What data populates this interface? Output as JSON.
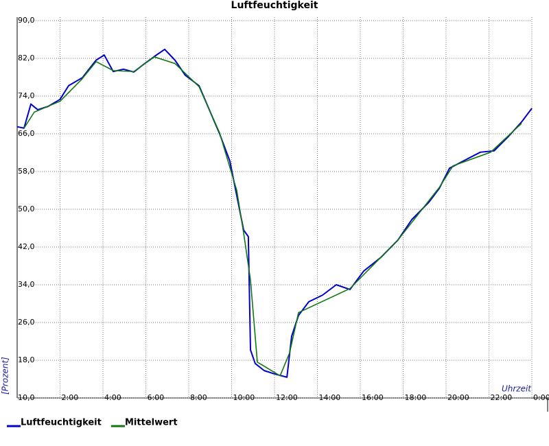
{
  "chart_data": {
    "type": "line",
    "title": "Luftfeuchtigkeit",
    "x_label": "Uhrzeit",
    "y_label": "[Prozent]",
    "xlim": [
      0,
      24
    ],
    "ylim": [
      10,
      90
    ],
    "xticks": [
      {
        "value": 2,
        "label": "2:00"
      },
      {
        "value": 4,
        "label": "4:00"
      },
      {
        "value": 6,
        "label": "6:00"
      },
      {
        "value": 8,
        "label": "8:00"
      },
      {
        "value": 10,
        "label": "10:00"
      },
      {
        "value": 12,
        "label": "12:00"
      },
      {
        "value": 14,
        "label": "14:00"
      },
      {
        "value": 16,
        "label": "16:00"
      },
      {
        "value": 18,
        "label": "18:00"
      },
      {
        "value": 20,
        "label": "20:00"
      },
      {
        "value": 22,
        "label": "22:00"
      },
      {
        "value": 24,
        "label": "0:00"
      }
    ],
    "yticks": [
      {
        "value": 10,
        "label": "10,0"
      },
      {
        "value": 18,
        "label": "18,0"
      },
      {
        "value": 26,
        "label": "26,0"
      },
      {
        "value": 34,
        "label": "34,0"
      },
      {
        "value": 42,
        "label": "42,0"
      },
      {
        "value": 50,
        "label": "50,0"
      },
      {
        "value": 58,
        "label": "58,0"
      },
      {
        "value": 66,
        "label": "66,0"
      },
      {
        "value": 74,
        "label": "74,0"
      },
      {
        "value": 82,
        "label": "82,0"
      },
      {
        "value": 90,
        "label": "90,0"
      }
    ],
    "grid": true,
    "series": [
      {
        "name": "Luftfeuchtigkeit",
        "color": "#0000cc",
        "x": [
          0,
          0.32,
          0.64,
          0.96,
          1.44,
          2.0,
          2.4,
          3.04,
          3.68,
          4.06,
          4.48,
          4.96,
          5.44,
          5.92,
          6.4,
          6.88,
          7.36,
          7.84,
          8.48,
          8.96,
          9.44,
          9.92,
          10.24,
          10.56,
          10.78,
          10.88,
          11.1,
          11.52,
          12.0,
          12.58,
          12.8,
          13.12,
          13.6,
          14.24,
          14.88,
          15.52,
          16.16,
          16.96,
          17.76,
          18.4,
          19.2,
          19.68,
          20.16,
          20.96,
          21.6,
          22.24,
          22.88,
          23.52,
          24.0
        ],
        "values": [
          67.5,
          67.2,
          72.3,
          71.1,
          71.8,
          73.3,
          76.2,
          77.9,
          81.6,
          82.7,
          79.2,
          79.7,
          79.1,
          80.8,
          82.4,
          83.9,
          81.6,
          78.4,
          76.2,
          71.1,
          66.0,
          60.2,
          52.9,
          45.6,
          44.2,
          20.2,
          17.3,
          15.8,
          15.1,
          14.4,
          23.1,
          27.5,
          30.4,
          31.8,
          34.0,
          33.0,
          36.9,
          39.8,
          43.5,
          47.8,
          51.5,
          54.4,
          58.7,
          60.6,
          62.1,
          62.4,
          65.3,
          68.5,
          71.4
        ]
      },
      {
        "name": "Mittelwert",
        "color": "#117711",
        "x": [
          0.32,
          0.8,
          2.0,
          3.0,
          3.68,
          4.48,
          5.44,
          6.4,
          7.36,
          8.48,
          9.44,
          10.24,
          10.56,
          10.88,
          11.2,
          12.26,
          12.7,
          13.12,
          15.52,
          17.76,
          19.68,
          20.32,
          22.08,
          23.52
        ],
        "values": [
          67.2,
          70.6,
          72.9,
          77.5,
          81.3,
          79.4,
          79.2,
          82.3,
          80.9,
          76.0,
          66.2,
          54.0,
          45.0,
          35.0,
          17.6,
          14.7,
          19.5,
          28.1,
          33.2,
          43.5,
          54.6,
          59.2,
          62.1,
          68.2
        ]
      }
    ]
  }
}
